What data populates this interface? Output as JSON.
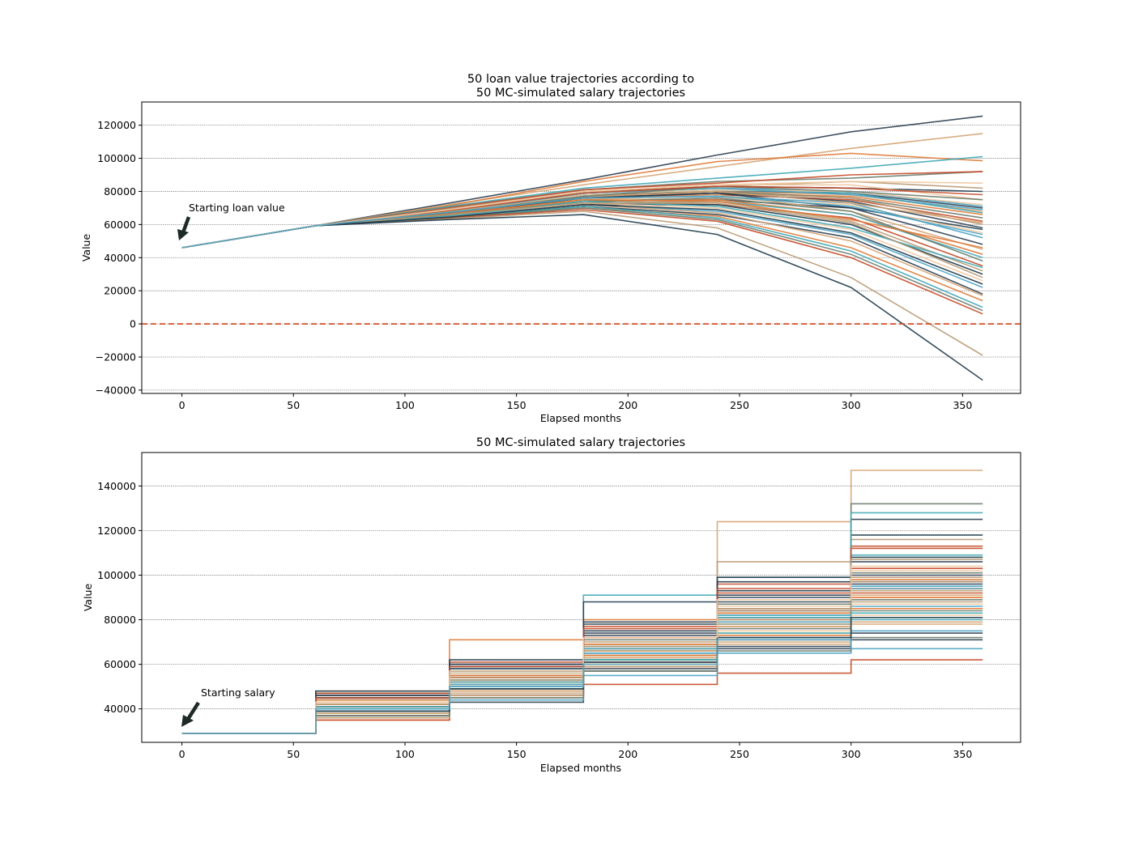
{
  "chart_data": [
    {
      "type": "line",
      "title_lines": [
        "50 loan value trajectories according to",
        "50 MC-simulated salary trajectories"
      ],
      "xlabel": "Elapsed months",
      "ylabel": "Value",
      "xlim": [
        -18,
        376
      ],
      "ylim": [
        -42000,
        134000
      ],
      "x_ticks": [
        0,
        50,
        100,
        150,
        200,
        250,
        300,
        350
      ],
      "y_ticks": [
        -40000,
        -20000,
        0,
        20000,
        40000,
        60000,
        80000,
        100000,
        120000
      ],
      "grid": "horizontal",
      "reference_line": {
        "y": 0,
        "style": "dashed",
        "color": "#d4502a"
      },
      "annotation": {
        "text": "Starting loan value",
        "xy": [
          0,
          46000
        ]
      },
      "x": [
        0,
        60,
        120,
        180,
        240,
        300,
        359
      ],
      "series_count": 50,
      "series": [
        {
          "values": [
            46000,
            59300,
            73000,
            87000,
            102000,
            116000,
            125500
          ]
        },
        {
          "values": [
            46000,
            59300,
            72000,
            84000,
            95000,
            106000,
            115000
          ]
        },
        {
          "values": [
            46000,
            59300,
            71500,
            86000,
            98000,
            103000,
            98500
          ]
        },
        {
          "values": [
            46000,
            59300,
            71000,
            82000,
            88000,
            94000,
            101000
          ]
        },
        {
          "values": [
            46000,
            59300,
            70500,
            81000,
            86000,
            88000,
            92000
          ]
        },
        {
          "values": [
            46000,
            59300,
            70000,
            81000,
            85000,
            90000,
            92000
          ]
        },
        {
          "values": [
            46000,
            59300,
            69500,
            80000,
            83000,
            86000,
            82000
          ]
        },
        {
          "values": [
            46000,
            59300,
            69000,
            79000,
            83000,
            82000,
            80000
          ]
        },
        {
          "values": [
            46000,
            59300,
            69000,
            80000,
            84000,
            84000,
            75000
          ]
        },
        {
          "values": [
            46000,
            59300,
            68500,
            79000,
            82000,
            80000,
            71000
          ]
        },
        {
          "values": [
            46000,
            59300,
            68500,
            78000,
            80000,
            79000,
            70000
          ]
        },
        {
          "values": [
            46000,
            59300,
            68000,
            80000,
            80000,
            78000,
            68000
          ]
        },
        {
          "values": [
            46000,
            59300,
            68000,
            77000,
            79000,
            77000,
            66000
          ]
        },
        {
          "values": [
            46000,
            59300,
            68000,
            78000,
            81000,
            79000,
            67000
          ]
        },
        {
          "values": [
            46000,
            59300,
            67500,
            77000,
            80000,
            76000,
            64000
          ]
        },
        {
          "values": [
            46000,
            59300,
            67500,
            76000,
            78000,
            75000,
            62000
          ]
        },
        {
          "values": [
            46000,
            59300,
            67000,
            77000,
            79000,
            76000,
            60000
          ]
        },
        {
          "values": [
            46000,
            59300,
            67000,
            76000,
            79000,
            70000,
            57000
          ]
        },
        {
          "values": [
            46000,
            59300,
            67000,
            75000,
            76000,
            72000,
            55000
          ]
        },
        {
          "values": [
            46000,
            59300,
            66500,
            76000,
            77000,
            73000,
            52000
          ]
        },
        {
          "values": [
            46000,
            59300,
            66500,
            74000,
            75000,
            70000,
            48000
          ]
        },
        {
          "values": [
            46000,
            59300,
            66000,
            75000,
            78000,
            68000,
            45000
          ]
        },
        {
          "values": [
            46000,
            59300,
            66000,
            74000,
            75000,
            66000,
            42000
          ]
        },
        {
          "values": [
            46000,
            59300,
            66000,
            73000,
            74000,
            66000,
            40000
          ]
        },
        {
          "values": [
            46000,
            59300,
            65500,
            74000,
            76000,
            68000,
            38000
          ]
        },
        {
          "values": [
            46000,
            59300,
            65500,
            73000,
            72000,
            64000,
            35000
          ]
        },
        {
          "values": [
            46000,
            59300,
            65500,
            73000,
            74000,
            62000,
            32000
          ]
        },
        {
          "values": [
            46000,
            59300,
            65000,
            72000,
            72000,
            60000,
            30000
          ]
        },
        {
          "values": [
            46000,
            59300,
            65000,
            73000,
            70000,
            57000,
            26000
          ]
        },
        {
          "values": [
            46000,
            59300,
            65000,
            72000,
            68000,
            54000,
            22000
          ]
        },
        {
          "values": [
            46000,
            59300,
            64500,
            71000,
            66000,
            52000,
            18000
          ]
        },
        {
          "values": [
            46000,
            59300,
            64500,
            72000,
            67000,
            50000,
            17000
          ]
        },
        {
          "values": [
            46000,
            59300,
            64500,
            70000,
            65000,
            46000,
            14000
          ]
        },
        {
          "values": [
            46000,
            59300,
            64000,
            71000,
            64000,
            44000,
            10000
          ]
        },
        {
          "values": [
            46000,
            59300,
            64000,
            70000,
            63000,
            42000,
            8000
          ]
        },
        {
          "values": [
            46000,
            59300,
            64000,
            69000,
            62000,
            40000,
            6000
          ]
        },
        {
          "values": [
            46000,
            59300,
            63500,
            68000,
            58000,
            28000,
            -19000
          ]
        },
        {
          "values": [
            46000,
            59300,
            63000,
            66000,
            54000,
            22000,
            -34000
          ]
        },
        {
          "values": [
            46000,
            59300,
            67000,
            78000,
            81000,
            80000,
            72000
          ]
        },
        {
          "values": [
            46000,
            59300,
            67500,
            79000,
            82000,
            78000,
            69000
          ]
        },
        {
          "values": [
            46000,
            59300,
            66000,
            76000,
            79000,
            74000,
            58000
          ]
        },
        {
          "values": [
            46000,
            59300,
            68000,
            77000,
            80000,
            73000,
            61000
          ]
        },
        {
          "values": [
            46000,
            59300,
            66500,
            75000,
            74000,
            63000,
            46000
          ]
        },
        {
          "values": [
            46000,
            59300,
            65000,
            74000,
            71000,
            58000,
            34000
          ]
        },
        {
          "values": [
            46000,
            59300,
            67000,
            77000,
            83000,
            80000,
            75000
          ]
        },
        {
          "values": [
            46000,
            59300,
            68500,
            79000,
            83000,
            82000,
            78000
          ]
        },
        {
          "values": [
            46000,
            59300,
            66000,
            73000,
            73000,
            61000,
            28000
          ]
        },
        {
          "values": [
            46000,
            59300,
            64500,
            72000,
            69000,
            55000,
            24000
          ]
        },
        {
          "values": [
            46000,
            59300,
            69000,
            80000,
            84000,
            86000,
            85000
          ]
        },
        {
          "values": [
            46000,
            59300,
            67500,
            76000,
            77000,
            71000,
            54000
          ]
        }
      ]
    },
    {
      "type": "line",
      "title": "50 MC-simulated salary trajectories",
      "xlabel": "Elapsed months",
      "ylabel": "Value",
      "xlim": [
        -18,
        376
      ],
      "ylim": [
        25000,
        155000
      ],
      "x_ticks": [
        0,
        50,
        100,
        150,
        200,
        250,
        300,
        350
      ],
      "y_ticks": [
        40000,
        60000,
        80000,
        100000,
        120000,
        140000
      ],
      "grid": "horizontal",
      "step": true,
      "annotation": {
        "text": "Starting salary",
        "xy": [
          0,
          29000
        ]
      },
      "x_steps": [
        0,
        60,
        120,
        180,
        240,
        300,
        359
      ],
      "series_count": 50,
      "series": [
        {
          "values": [
            29000,
            37000,
            43000,
            57000,
            68000,
            71000
          ]
        },
        {
          "values": [
            29000,
            48000,
            55000,
            63000,
            124000,
            147000
          ]
        },
        {
          "values": [
            29000,
            35000,
            71000,
            80000,
            85000,
            90000
          ]
        },
        {
          "values": [
            29000,
            38000,
            50000,
            91000,
            99000,
            109000
          ]
        },
        {
          "values": [
            29000,
            44000,
            51000,
            61000,
            81000,
            132000
          ]
        },
        {
          "values": [
            29000,
            35000,
            47000,
            51000,
            56000,
            62000
          ]
        },
        {
          "values": [
            29000,
            40000,
            53000,
            60000,
            106000,
            116000
          ]
        },
        {
          "values": [
            29000,
            39000,
            46000,
            88000,
            90000,
            97000
          ]
        },
        {
          "values": [
            29000,
            41000,
            49000,
            66000,
            73000,
            98000
          ]
        },
        {
          "values": [
            29000,
            46000,
            58000,
            67000,
            78000,
            86000
          ]
        },
        {
          "values": [
            29000,
            36000,
            47000,
            58000,
            67000,
            74000
          ]
        },
        {
          "values": [
            29000,
            37000,
            45000,
            64000,
            70000,
            79000
          ]
        },
        {
          "values": [
            29000,
            42000,
            54000,
            69000,
            83000,
            94000
          ]
        },
        {
          "values": [
            29000,
            43000,
            52000,
            62000,
            72000,
            80000
          ]
        },
        {
          "values": [
            29000,
            39000,
            49000,
            59000,
            71000,
            84000
          ]
        },
        {
          "values": [
            29000,
            41000,
            56000,
            72000,
            92000,
            103000
          ]
        },
        {
          "values": [
            29000,
            38000,
            50000,
            64000,
            78000,
            88000
          ]
        },
        {
          "values": [
            29000,
            45000,
            57000,
            70000,
            84000,
            96000
          ]
        },
        {
          "values": [
            29000,
            40000,
            52000,
            63000,
            74000,
            82000
          ]
        },
        {
          "values": [
            29000,
            36000,
            44000,
            55000,
            65000,
            75000
          ]
        },
        {
          "values": [
            29000,
            47000,
            60000,
            74000,
            88000,
            100000
          ]
        },
        {
          "values": [
            29000,
            42000,
            51000,
            66000,
            79000,
            91000
          ]
        },
        {
          "values": [
            29000,
            39000,
            48000,
            61000,
            73000,
            85000
          ]
        },
        {
          "values": [
            29000,
            44000,
            56000,
            68000,
            81000,
            93000
          ]
        },
        {
          "values": [
            29000,
            37000,
            49000,
            62000,
            76000,
            89000
          ]
        },
        {
          "values": [
            29000,
            41000,
            54000,
            67000,
            80000,
            92000
          ]
        },
        {
          "values": [
            29000,
            43000,
            55000,
            69000,
            85000,
            99000
          ]
        },
        {
          "values": [
            29000,
            46000,
            59000,
            75000,
            93000,
            108000
          ]
        },
        {
          "values": [
            29000,
            38000,
            47000,
            60000,
            75000,
            87000
          ]
        },
        {
          "values": [
            29000,
            40000,
            53000,
            65000,
            82000,
            95000
          ]
        },
        {
          "values": [
            29000,
            45000,
            58000,
            73000,
            91000,
            106000
          ]
        },
        {
          "values": [
            29000,
            36000,
            46000,
            59000,
            69000,
            78000
          ]
        },
        {
          "values": [
            29000,
            42000,
            52000,
            64000,
            77000,
            90000
          ]
        },
        {
          "values": [
            29000,
            39000,
            50000,
            62000,
            74000,
            83000
          ]
        },
        {
          "values": [
            29000,
            44000,
            57000,
            71000,
            87000,
            101000
          ]
        },
        {
          "values": [
            29000,
            47000,
            61000,
            77000,
            96000,
            113000
          ]
        },
        {
          "values": [
            29000,
            41000,
            53000,
            66000,
            80000,
            97000
          ]
        },
        {
          "values": [
            29000,
            48000,
            62000,
            78000,
            97000,
            118000
          ]
        },
        {
          "values": [
            29000,
            43000,
            56000,
            70000,
            86000,
            102000
          ]
        },
        {
          "values": [
            29000,
            40000,
            51000,
            65000,
            79000,
            94000
          ]
        },
        {
          "values": [
            29000,
            46000,
            60000,
            79000,
            99000,
            125000
          ]
        },
        {
          "values": [
            29000,
            38000,
            48000,
            63000,
            77000,
            93000
          ]
        },
        {
          "values": [
            29000,
            44000,
            55000,
            69000,
            83000,
            98000
          ]
        },
        {
          "values": [
            29000,
            41000,
            52000,
            67000,
            82000,
            128000
          ]
        },
        {
          "values": [
            29000,
            37000,
            45000,
            57000,
            66000,
            72000
          ]
        },
        {
          "values": [
            29000,
            45000,
            59000,
            76000,
            94000,
            112000
          ]
        },
        {
          "values": [
            29000,
            42000,
            54000,
            68000,
            84000,
            107000
          ]
        },
        {
          "values": [
            29000,
            39000,
            49000,
            61000,
            72000,
            81000
          ]
        },
        {
          "values": [
            29000,
            43000,
            57000,
            72000,
            89000,
            104000
          ]
        },
        {
          "values": [
            29000,
            40000,
            50000,
            60000,
            71000,
            67000
          ]
        }
      ]
    }
  ],
  "palette": [
    "#2c3e50",
    "#d4a373",
    "#e07b39",
    "#3fa7b5",
    "#6b7c6e",
    "#c44a28",
    "#b89a74",
    "#1f3b4d",
    "#f0c9a0",
    "#4aa3c4"
  ]
}
